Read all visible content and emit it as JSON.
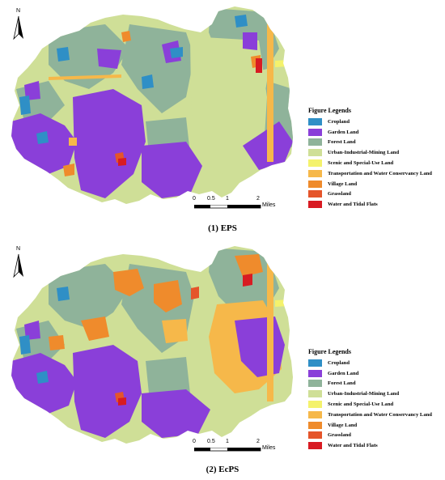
{
  "colors": {
    "cropland": "#2f8fc6",
    "garden_land": "#8a3fd9",
    "forest_land": "#8fb39a",
    "urban_industrial_mining_land": "#cfdf97",
    "scenic_special_use_land": "#f4f26c",
    "transportation_water_conservancy_land": "#f6b84a",
    "village_land": "#ef8b2c",
    "grassland": "#e5552a",
    "water_tidal_flats": "#d81b22"
  },
  "panels": [
    {
      "caption": "(1) EPS",
      "north_label": "N",
      "legend_title": "Figure Legends",
      "scale": {
        "ticks": [
          "0",
          "0.5",
          "1",
          "2"
        ],
        "units": "Miles"
      }
    },
    {
      "caption": "(2) EcPS",
      "north_label": "N",
      "legend_title": "Figure Legends",
      "scale": {
        "ticks": [
          "0",
          "0.5",
          "1",
          "2"
        ],
        "units": "Miles"
      }
    }
  ],
  "legend_items": [
    {
      "label": "Cropland",
      "color": "#2f8fc6"
    },
    {
      "label": "Garden Land",
      "color": "#8a3fd9"
    },
    {
      "label": "Forest Land",
      "color": "#8fb39a"
    },
    {
      "label": "Urban-Industrial-Mining Land",
      "color": "#cfdf97"
    },
    {
      "label": "Scenic and Special-Use Land",
      "color": "#f4f26c"
    },
    {
      "label": "Transportation and Water Conservancy Land",
      "color": "#f6b84a"
    },
    {
      "label": "Village Land",
      "color": "#ef8b2c"
    },
    {
      "label": "Grassland",
      "color": "#e5552a"
    },
    {
      "label": "Water and Tidal Flats",
      "color": "#d81b22"
    }
  ]
}
